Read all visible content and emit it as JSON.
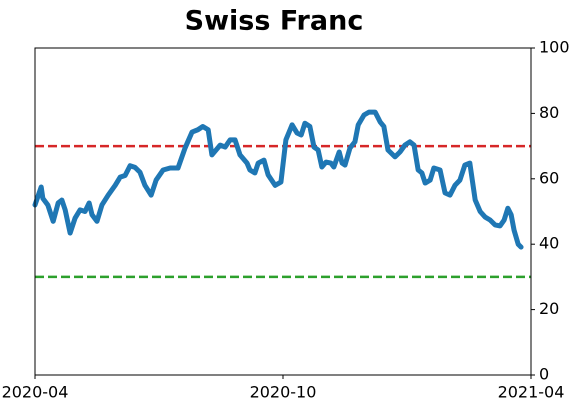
{
  "chart_data": {
    "type": "line",
    "title": "Swiss Franc",
    "x": [
      0,
      0.15,
      0.19,
      0.31,
      0.44,
      0.56,
      0.65,
      0.73,
      0.85,
      0.97,
      1.09,
      1.21,
      1.31,
      1.38,
      1.5,
      1.62,
      1.77,
      1.94,
      2.06,
      2.18,
      2.3,
      2.42,
      2.54,
      2.66,
      2.81,
      2.93,
      3.1,
      3.27,
      3.46,
      3.63,
      3.8,
      3.94,
      4.06,
      4.19,
      4.28,
      4.48,
      4.6,
      4.72,
      4.84,
      4.96,
      5.13,
      5.2,
      5.32,
      5.4,
      5.54,
      5.64,
      5.81,
      5.95,
      6.07,
      6.22,
      6.34,
      6.44,
      6.53,
      6.65,
      6.75,
      6.85,
      6.94,
      7.04,
      7.16,
      7.23,
      7.36,
      7.43,
      7.5,
      7.62,
      7.74,
      7.82,
      7.96,
      8.08,
      8.23,
      8.35,
      8.44,
      8.54,
      8.71,
      8.83,
      8.95,
      9.07,
      9.17,
      9.27,
      9.36,
      9.44,
      9.56,
      9.65,
      9.8,
      9.92,
      10.04,
      10.16,
      10.28,
      10.4,
      10.52,
      10.65,
      10.77,
      10.89,
      11.01,
      11.13,
      11.25,
      11.35,
      11.44,
      11.52,
      11.59,
      11.69,
      11.76
    ],
    "series": [
      {
        "color": "#1f77b4",
        "values": [
          52,
          57.5,
          54,
          52,
          47,
          52.6,
          53.5,
          50.5,
          43.4,
          48,
          50.5,
          50,
          52.6,
          49,
          47,
          52,
          55,
          58,
          60.5,
          61,
          64,
          63.5,
          62,
          58,
          55,
          59.6,
          62.7,
          63.3,
          63.3,
          69.4,
          74.3,
          75,
          76,
          75,
          67.3,
          70.3,
          69.7,
          71.9,
          71.9,
          67.3,
          64.8,
          62.7,
          61.8,
          64.8,
          65.7,
          61.2,
          58,
          59,
          71.9,
          76.5,
          74,
          73.4,
          77,
          76,
          69.7,
          68.8,
          63.6,
          65.1,
          64.8,
          63.6,
          68.2,
          64.8,
          64.2,
          69.4,
          71.3,
          76.5,
          79.5,
          80.4,
          80.4,
          77.4,
          76,
          68.8,
          66.7,
          68.2,
          70.3,
          71.3,
          70.3,
          62.7,
          61.8,
          58.7,
          59.6,
          63.3,
          62.7,
          55.7,
          55,
          58,
          59.6,
          64.2,
          64.8,
          53.5,
          50,
          48.3,
          47.4,
          45.9,
          45.6,
          47.4,
          51,
          49,
          44.3,
          40,
          39.1
        ]
      }
    ],
    "xlim": [
      0,
      12
    ],
    "xticks": [
      {
        "value": 0,
        "label": "2020-04"
      },
      {
        "value": 6,
        "label": "2020-10"
      },
      {
        "value": 12,
        "label": "2021-04"
      }
    ],
    "ylim": [
      0,
      100
    ],
    "yticks": [
      0,
      20,
      40,
      60,
      80,
      100
    ],
    "reference_lines": [
      {
        "value": 70,
        "color": "#d62728"
      },
      {
        "value": 30,
        "color": "#2ca02c"
      }
    ]
  }
}
